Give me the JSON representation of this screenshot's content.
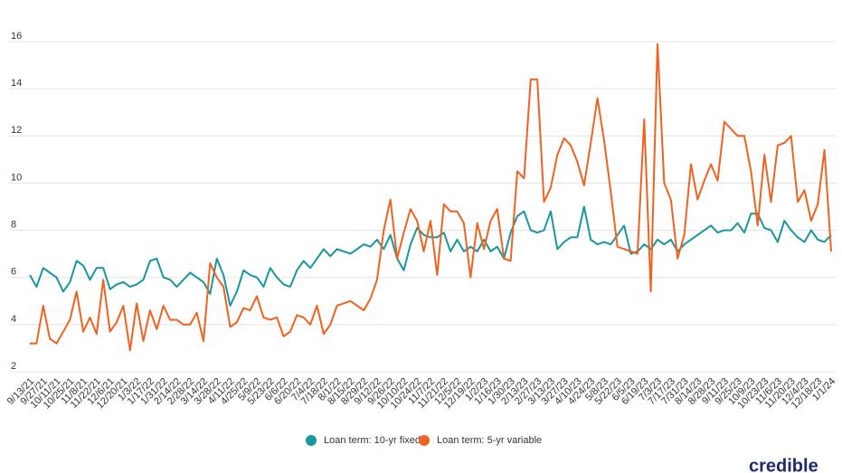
{
  "chart_data": {
    "type": "line",
    "categories": [
      "9/13/21",
      null,
      "9/27/21",
      null,
      "10/11/21",
      null,
      "10/25/21",
      null,
      "11/8/21",
      null,
      "11/22/21",
      null,
      "12/6/21",
      null,
      "12/20/21",
      null,
      "1/3/22",
      null,
      "1/17/22",
      null,
      "1/31/22",
      null,
      "2/14/22",
      null,
      "2/28/22",
      null,
      "3/14/22",
      null,
      "3/28/22",
      null,
      "4/11/22",
      null,
      "4/25/22",
      null,
      "5/9/22",
      null,
      "5/23/22",
      null,
      "6/6/22",
      null,
      "6/20/22",
      null,
      "7/4/22",
      null,
      "7/18/22",
      null,
      "8/1/22",
      null,
      "8/15/22",
      null,
      "8/29/22",
      null,
      "9/12/22",
      null,
      "9/26/22",
      null,
      "10/10/22",
      null,
      "10/24/22",
      null,
      "11/7/22",
      null,
      "11/21/22",
      null,
      "12/5/22",
      null,
      "12/19/22",
      null,
      "1/2/23",
      null,
      "1/16/23",
      null,
      "1/30/23",
      null,
      "2/13/23",
      null,
      "2/27/23",
      null,
      "3/13/23",
      null,
      "3/27/23",
      null,
      "4/10/23",
      null,
      "4/24/23",
      null,
      "5/8/23",
      null,
      "5/22/23",
      null,
      "6/5/23",
      null,
      "6/19/23",
      null,
      "7/3/23",
      null,
      "7/17/23",
      null,
      "7/31/23",
      null,
      "8/14/23",
      null,
      "8/28/23",
      null,
      "9/11/23",
      null,
      "9/25/23",
      null,
      "10/9/23",
      null,
      "10/23/23",
      null,
      "11/6/23",
      null,
      "11/20/23",
      null,
      "12/4/23",
      null,
      "12/18/23",
      null,
      "1/1/24"
    ],
    "series": [
      {
        "name": "Loan term: 10-yr fixed",
        "color": "#17979e",
        "values": [
          6.1,
          5.6,
          6.4,
          6.2,
          6.0,
          5.4,
          5.8,
          6.7,
          6.5,
          5.9,
          6.4,
          6.4,
          5.5,
          5.7,
          5.8,
          5.6,
          5.7,
          5.9,
          6.7,
          6.8,
          6.0,
          5.9,
          5.6,
          5.9,
          6.2,
          6.0,
          5.8,
          5.3,
          6.8,
          6.1,
          4.8,
          5.4,
          6.3,
          6.1,
          6.0,
          5.6,
          6.4,
          6.0,
          5.7,
          5.6,
          6.3,
          6.7,
          6.4,
          6.8,
          7.2,
          6.9,
          7.2,
          7.1,
          7.0,
          7.2,
          7.4,
          7.3,
          7.6,
          7.2,
          7.8,
          6.8,
          6.3,
          7.4,
          8.1,
          7.8,
          7.7,
          7.7,
          7.9,
          7.1,
          7.6,
          7.1,
          7.3,
          7.1,
          7.6,
          7.1,
          7.3,
          6.8,
          7.9,
          8.6,
          8.8,
          8.0,
          7.9,
          8.0,
          8.8,
          7.2,
          7.5,
          7.7,
          7.7,
          9.0,
          7.6,
          7.4,
          7.5,
          7.4,
          7.8,
          8.2,
          7.0,
          7.1,
          7.4,
          7.2,
          7.6,
          7.4,
          7.6,
          7.1,
          7.4,
          7.6,
          7.8,
          8.0,
          8.2,
          7.9,
          8.0,
          8.0,
          8.3,
          7.9,
          8.7,
          8.7,
          8.1,
          8.0,
          7.5,
          8.4,
          8.0,
          7.7,
          7.5,
          8.0,
          7.6,
          7.5,
          7.8
        ]
      },
      {
        "name": "Loan term: 5-yr variable",
        "color": "#f0621f",
        "values": [
          3.2,
          3.2,
          4.8,
          3.4,
          3.2,
          3.7,
          4.2,
          5.4,
          3.7,
          4.3,
          3.6,
          5.9,
          3.7,
          4.1,
          4.8,
          2.9,
          4.9,
          3.3,
          4.6,
          3.8,
          4.8,
          4.2,
          4.2,
          4.0,
          4.0,
          4.5,
          3.3,
          6.6,
          6.0,
          5.6,
          3.9,
          4.1,
          4.7,
          4.6,
          5.2,
          4.3,
          4.2,
          4.3,
          3.5,
          3.7,
          4.4,
          4.3,
          4.0,
          4.8,
          3.6,
          4.0,
          4.8,
          4.9,
          5.0,
          4.8,
          4.6,
          5.1,
          5.9,
          8.0,
          9.3,
          6.8,
          7.9,
          8.9,
          8.4,
          7.1,
          8.4,
          6.1,
          9.1,
          8.8,
          8.8,
          8.3,
          6.0,
          8.3,
          7.2,
          8.4,
          8.9,
          6.8,
          6.7,
          10.5,
          10.2,
          14.4,
          14.4,
          9.2,
          9.8,
          11.2,
          11.9,
          11.6,
          10.9,
          9.9,
          11.7,
          13.6,
          11.8,
          9.6,
          7.3,
          7.2,
          7.1,
          7.0,
          12.7,
          5.4,
          15.9,
          10.0,
          9.3,
          6.8,
          7.8,
          10.8,
          9.3,
          10.1,
          10.8,
          10.1,
          12.6,
          12.3,
          12.0,
          12.0,
          10.5,
          8.2,
          11.2,
          9.2,
          11.6,
          11.7,
          12.0,
          9.2,
          9.7,
          8.4,
          9.1,
          11.4,
          7.1
        ]
      }
    ],
    "ylim": [
      2,
      16
    ],
    "yticks": [
      2,
      4,
      6,
      8,
      10,
      12,
      14,
      16
    ],
    "grid": true,
    "legend": "bottom",
    "logo": "credible"
  }
}
